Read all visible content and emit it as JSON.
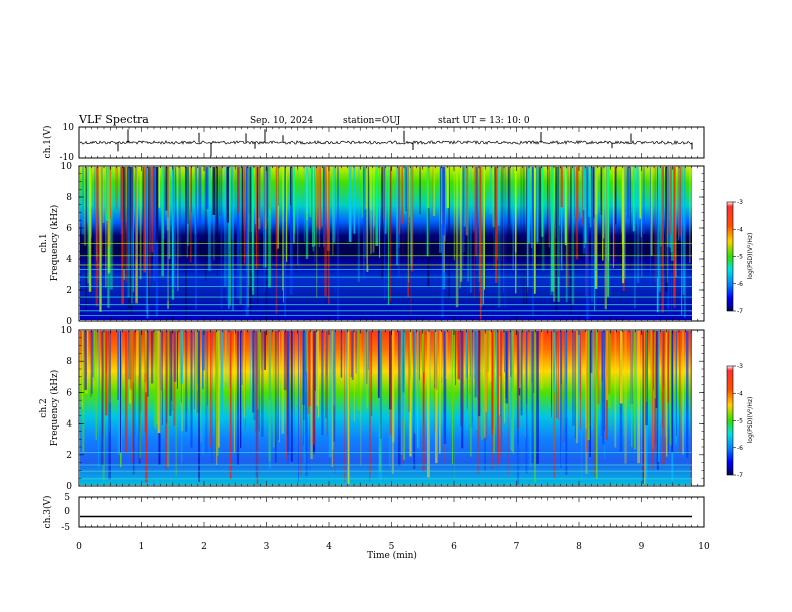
{
  "header": {
    "title": "VLF Spectra",
    "date": "Sep. 10, 2024",
    "station": "station=OUJ",
    "start": "start  UT  =   13: 10: 0"
  },
  "colors": {
    "spectrogram_colormap": [
      "#00007a",
      "#0000ff",
      "#0096ff",
      "#00e5e5",
      "#00e000",
      "#d8f000",
      "#ffd000",
      "#ff6000",
      "#ff2000"
    ],
    "line": "#000000"
  },
  "chart_data": [
    {
      "type": "line",
      "panel": "ch1-waveform",
      "ylabel": "ch.1(V)",
      "ylim": [
        -10,
        10
      ],
      "yticks": [
        "10",
        "-10"
      ],
      "baseline": 0,
      "x_range_min": [
        0,
        10
      ]
    },
    {
      "type": "heatmap",
      "panel": "ch1-spectrogram",
      "ylabel": "ch.1",
      "ylabel2": "Frequency  (kHz)",
      "ylim": [
        0,
        10
      ],
      "yticks": [
        "0",
        "2",
        "4",
        "6",
        "8",
        "10"
      ],
      "colorbar": {
        "label": "log(PSD)(V²/Hz)",
        "range": [
          -7,
          -3
        ],
        "ticks": [
          "-3",
          "-4",
          "-5",
          "-6",
          "-7"
        ]
      }
    },
    {
      "type": "heatmap",
      "panel": "ch2-spectrogram",
      "ylabel": "ch.2",
      "ylabel2": "Frequency  (kHz)",
      "ylim": [
        0,
        10
      ],
      "yticks": [
        "0",
        "2",
        "4",
        "6",
        "8",
        "10"
      ],
      "colorbar": {
        "label": "log(PSD)(V²/Hz)",
        "range": [
          -7,
          -3
        ],
        "ticks": [
          "-3",
          "-4",
          "-5",
          "-6",
          "-7"
        ]
      }
    },
    {
      "type": "line",
      "panel": "ch3-waveform",
      "ylabel": "ch.3(V)",
      "ylim": [
        -5,
        5
      ],
      "yticks": [
        "5",
        "0",
        "-5"
      ],
      "constant_value": -1.5
    }
  ],
  "xaxis": {
    "label": "Time  (min)",
    "ticks": [
      "0",
      "1",
      "2",
      "3",
      "4",
      "5",
      "6",
      "7",
      "8",
      "9",
      "10"
    ],
    "range": [
      0,
      10
    ]
  }
}
